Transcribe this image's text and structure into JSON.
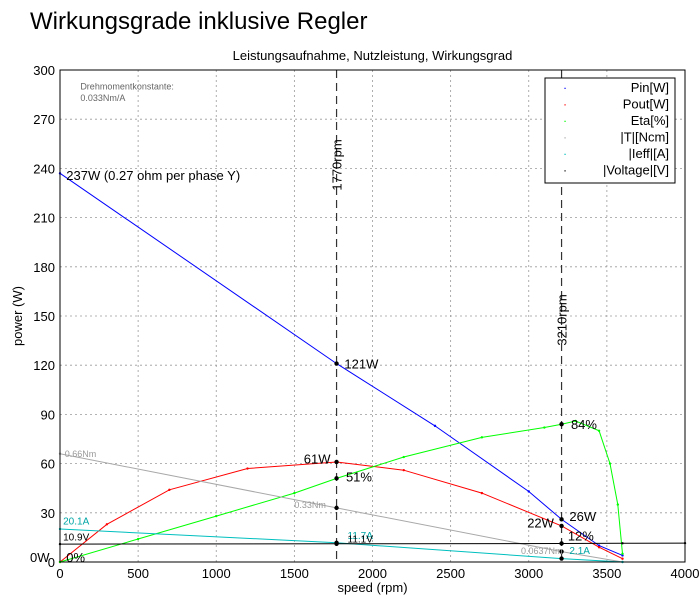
{
  "page": {
    "title": "Wirkungsgrade inklusive Regler"
  },
  "chart_data": {
    "type": "line",
    "title": "Leistungsaufnahme, Nutzleistung, Wirkungsgrad",
    "xlabel": "speed (rpm)",
    "ylabel": "power (W)",
    "xlim": [
      0,
      4000
    ],
    "ylim": [
      0,
      300
    ],
    "x_ticks": [
      0,
      500,
      1000,
      1500,
      2000,
      2500,
      3000,
      3500,
      4000
    ],
    "y_ticks": [
      0,
      30,
      60,
      90,
      120,
      150,
      180,
      210,
      240,
      270,
      300
    ],
    "grid": true,
    "legend_position": "top-right",
    "legend": [
      {
        "label": "Pin[W]",
        "color": "#0000ff"
      },
      {
        "label": "Pout[W]",
        "color": "#ff0000"
      },
      {
        "label": "Eta[%]",
        "color": "#00ff00"
      },
      {
        "label": "|T|[Ncm]",
        "color": "#a8a8a8"
      },
      {
        "label": "|Ieff|[A]",
        "color": "#00bfbf"
      },
      {
        "label": "|Voltage|[V]",
        "color": "#000000"
      }
    ],
    "series": [
      {
        "name": "Pin[W]",
        "color": "#0000ff",
        "x": [
          0,
          1770,
          2400,
          3000,
          3210,
          3450,
          3600
        ],
        "y": [
          237,
          121,
          83,
          43,
          26,
          10,
          4
        ]
      },
      {
        "name": "Pout[W]",
        "color": "#ff0000",
        "x": [
          0,
          300,
          700,
          1200,
          1770,
          2200,
          2700,
          3210,
          3450,
          3600
        ],
        "y": [
          0,
          23,
          44,
          57,
          61,
          56,
          42,
          22,
          9,
          2
        ]
      },
      {
        "name": "Eta[%]",
        "color": "#00ff00",
        "x": [
          0,
          500,
          1000,
          1500,
          1770,
          2200,
          2700,
          3100,
          3210,
          3300,
          3450,
          3520,
          3570,
          3600
        ],
        "y": [
          0,
          14,
          28,
          42,
          51,
          64,
          76,
          82,
          84,
          86,
          80,
          60,
          35,
          5
        ]
      },
      {
        "name": "|T|[Ncm]",
        "color": "#a8a8a8",
        "x": [
          0,
          1770,
          3210,
          3600
        ],
        "y": [
          66,
          33,
          6.37,
          0
        ]
      },
      {
        "name": "|Ieff|[A]",
        "color": "#00bfbf",
        "x": [
          0,
          1770,
          3210,
          3600
        ],
        "y": [
          20.1,
          11.7,
          2.1,
          0
        ]
      },
      {
        "name": "|Voltage|[V]",
        "color": "#000000",
        "x": [
          0,
          1770,
          3210,
          3600,
          4000
        ],
        "y": [
          10.9,
          11.1,
          11.3,
          11.4,
          11.5
        ]
      }
    ],
    "markers": [
      {
        "x": 1770,
        "label": "1770rpm"
      },
      {
        "x": 3210,
        "label": "3210rpm"
      }
    ],
    "annotations": [
      {
        "text": "Drehmomentkonstante:",
        "x": 130,
        "y": 288
      },
      {
        "text": "0.033Nm/A",
        "x": 130,
        "y": 281
      },
      {
        "text": "237W (0.27 ohm per phase Y)",
        "x": 40,
        "y": 233
      },
      {
        "text": "121W",
        "x": 1820,
        "y": 118
      },
      {
        "text": "61W",
        "x": 1560,
        "y": 60
      },
      {
        "text": "51%",
        "x": 1830,
        "y": 49
      },
      {
        "text": "84%",
        "x": 3270,
        "y": 81
      },
      {
        "text": "26W",
        "x": 3260,
        "y": 25
      },
      {
        "text": "22W",
        "x": 2990,
        "y": 21
      },
      {
        "text": "12%",
        "x": 3250,
        "y": 13
      },
      {
        "text": "0.66Nm",
        "x": 30,
        "y": 64
      },
      {
        "text": "0.33Nm",
        "x": 1500,
        "y": 33
      },
      {
        "text": "0.0637Nm",
        "x": 2950,
        "y": 5
      },
      {
        "text": "20.1A",
        "x": 20,
        "y": 23
      },
      {
        "text": "11.7A",
        "x": 1840,
        "y": 14
      },
      {
        "text": "2.1A",
        "x": 3260,
        "y": 5
      },
      {
        "text": "10.9V",
        "x": 20,
        "y": 13
      },
      {
        "text": "11.1V",
        "x": 1840,
        "y": 12
      },
      {
        "text": "0W",
        "x": -200,
        "y": 0
      },
      {
        "text": "0%",
        "x": 40,
        "y": 0
      }
    ]
  }
}
